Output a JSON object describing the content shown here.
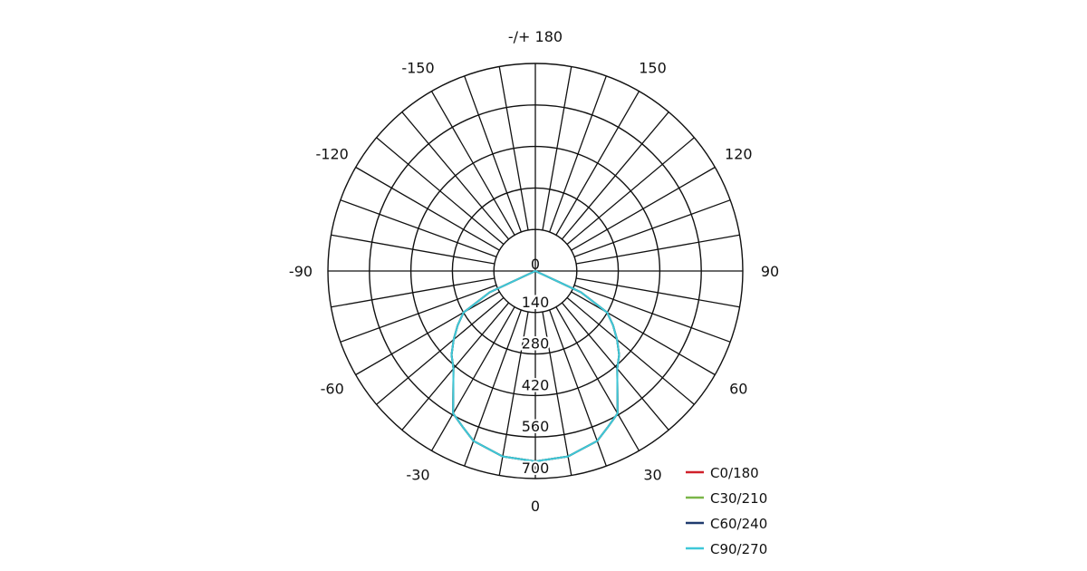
{
  "chart_data": {
    "type": "polar-line",
    "title": "",
    "radial_axis": {
      "range": [
        0,
        700
      ],
      "ticks": [
        140,
        280,
        420,
        560,
        700
      ],
      "tick_labels": [
        "140",
        "280",
        "420",
        "560",
        "700"
      ],
      "center_label": "0"
    },
    "angular_axis": {
      "zero_direction": "bottom",
      "tick_labels": [
        {
          "angle": 0,
          "label": "0"
        },
        {
          "angle": 30,
          "label": "30"
        },
        {
          "angle": 60,
          "label": "60"
        },
        {
          "angle": 90,
          "label": "90"
        },
        {
          "angle": 120,
          "label": "120"
        },
        {
          "angle": 150,
          "label": "150"
        },
        {
          "angle": 180,
          "label": "-/+ 180"
        },
        {
          "angle": -150,
          "label": "-150"
        },
        {
          "angle": -120,
          "label": "-120"
        },
        {
          "angle": -90,
          "label": "-90"
        },
        {
          "angle": -60,
          "label": "-60"
        },
        {
          "angle": -30,
          "label": "-30"
        }
      ],
      "grid_step_deg": 10
    },
    "grid": true,
    "legend_position": "bottom-right",
    "angles": [
      -90,
      -70,
      -65,
      -60,
      -55,
      -50,
      -45,
      -40,
      -30,
      -25,
      -20,
      -10,
      0,
      10,
      20,
      25,
      30,
      40,
      45,
      50,
      55,
      60,
      65,
      70,
      90
    ],
    "series": [
      {
        "name": "C0/180",
        "color": "#d0202a",
        "values": [
          0,
          0,
          170,
          280,
          320,
          360,
          400,
          430,
          555,
          580,
          610,
          635,
          642,
          635,
          610,
          580,
          555,
          430,
          400,
          360,
          320,
          280,
          170,
          0,
          0
        ]
      },
      {
        "name": "C30/210",
        "color": "#7ab648",
        "values": [
          0,
          0,
          170,
          280,
          320,
          360,
          400,
          430,
          555,
          580,
          610,
          635,
          642,
          635,
          610,
          580,
          555,
          430,
          400,
          360,
          320,
          280,
          170,
          0,
          0
        ]
      },
      {
        "name": "C60/240",
        "color": "#1f3a6e",
        "values": [
          0,
          0,
          170,
          280,
          320,
          360,
          400,
          430,
          555,
          580,
          610,
          635,
          642,
          635,
          610,
          580,
          555,
          430,
          400,
          360,
          320,
          280,
          170,
          0,
          0
        ]
      },
      {
        "name": "C90/270",
        "color": "#3ec8d8",
        "values": [
          0,
          0,
          170,
          280,
          320,
          360,
          400,
          430,
          555,
          580,
          610,
          635,
          642,
          635,
          610,
          580,
          555,
          430,
          400,
          360,
          320,
          280,
          170,
          0,
          0
        ]
      }
    ]
  }
}
